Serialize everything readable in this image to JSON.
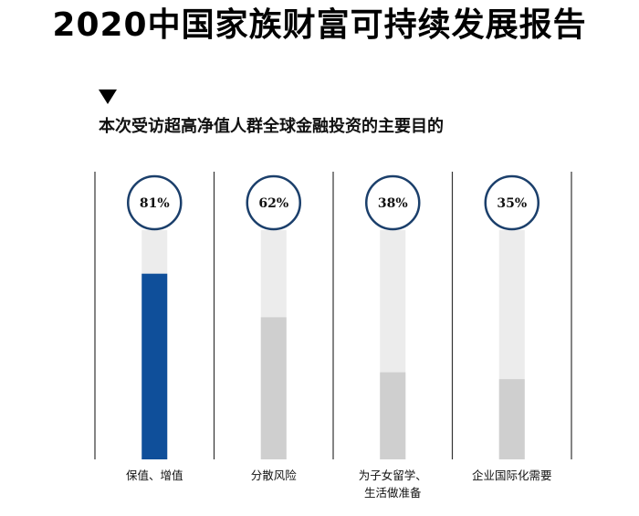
{
  "title": "2020中国家族财富可持续发展报告",
  "subtitle": "本次受访超高净值人群全球金融投资的主要目的",
  "marker_icon": "triangle-down-icon",
  "chart_data": {
    "type": "bar",
    "title": "本次受访超高净值人群全球金融投资的主要目的",
    "xlabel": "",
    "ylabel": "",
    "ylim": [
      0,
      100
    ],
    "categories": [
      [
        "保值、增值"
      ],
      [
        "分散风险"
      ],
      [
        "为子女留学、",
        "生活做准备"
      ],
      [
        "企业国际化需要"
      ]
    ],
    "values": [
      81,
      62,
      38,
      35
    ],
    "labels": [
      "81%",
      "62%",
      "38%",
      "35%"
    ],
    "colors": {
      "highlight": "#0f4f9a",
      "fill": "#cfcfcf",
      "track": "#ececec",
      "circle": "#1b3f6b",
      "divider": "#333333",
      "text": "#111111"
    }
  }
}
